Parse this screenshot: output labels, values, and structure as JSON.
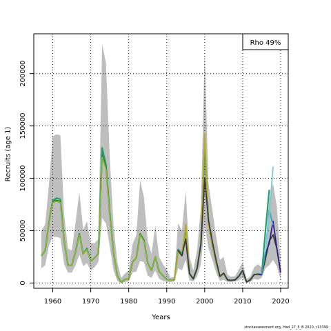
{
  "chart_data": {
    "type": "line",
    "title": "",
    "xlabel": "Years",
    "ylabel": "Recruits (age 1)",
    "xlim": [
      1955,
      2022
    ],
    "ylim": [
      -5000,
      238000
    ],
    "xticks": [
      1960,
      1970,
      1980,
      1990,
      2000,
      2010,
      2020
    ],
    "yticks": [
      0,
      50000,
      100000,
      150000,
      200000
    ],
    "grid": true,
    "legend_position": "top-right",
    "legend_text": "Rho 49%",
    "band": {
      "color": "#bebebe",
      "x": [
        1957,
        1958,
        1959,
        1960,
        1961,
        1962,
        1963,
        1964,
        1965,
        1966,
        1967,
        1968,
        1969,
        1970,
        1971,
        1972,
        1973,
        1974,
        1975,
        1976,
        1977,
        1978,
        1979,
        1980,
        1981,
        1982,
        1983,
        1984,
        1985,
        1986,
        1987,
        1988,
        1989,
        1990,
        1991,
        1992,
        1993,
        1994,
        1995,
        1996,
        1997,
        1998,
        1999,
        2000,
        2001,
        2002,
        2003,
        2004,
        2005,
        2006,
        2007,
        2008,
        2009,
        2010,
        2011,
        2012,
        2013,
        2014,
        2015,
        2016,
        2017,
        2018,
        2019,
        2020
      ],
      "lower": [
        14000,
        17000,
        36000,
        44000,
        44000,
        43000,
        18000,
        10000,
        10000,
        17000,
        27000,
        16000,
        19000,
        12000,
        15000,
        20000,
        62000,
        57000,
        35000,
        12000,
        2000,
        100,
        1000,
        1500,
        10000,
        11000,
        21000,
        20000,
        7000,
        5000,
        12000,
        4000,
        2000,
        1000,
        1000,
        1500,
        14000,
        12000,
        22000,
        2500,
        1500,
        6000,
        18000,
        55000,
        33000,
        22000,
        10000,
        2000,
        3000,
        1000,
        1000,
        1500,
        2500,
        5000,
        300,
        1000,
        4000,
        3000,
        5000,
        14000,
        17000,
        22000,
        16000,
        3000
      ],
      "upper": [
        50000,
        56000,
        95000,
        140000,
        142000,
        141000,
        65000,
        33000,
        31000,
        58000,
        87000,
        51000,
        59000,
        38000,
        38000,
        42000,
        228000,
        210000,
        120000,
        55000,
        20000,
        5000,
        9000,
        12000,
        37000,
        46000,
        98000,
        82000,
        40000,
        28000,
        55000,
        25000,
        18000,
        13000,
        5000,
        6000,
        57000,
        50000,
        88000,
        25000,
        12000,
        32000,
        72000,
        221000,
        95000,
        70000,
        45000,
        22000,
        25000,
        8000,
        6000,
        6500,
        13000,
        20000,
        4000,
        6000,
        15000,
        18000,
        15000,
        32000,
        80000,
        95000,
        73000,
        22000
      ]
    },
    "series": [
      {
        "color": "#1f9e6a",
        "x": [
          1957,
          1958,
          1959,
          1960,
          1961,
          1962,
          1963,
          1964,
          1965,
          1966,
          1967,
          1968,
          1969,
          1970,
          1971,
          1972,
          1973,
          1974,
          1975,
          1976,
          1977,
          1978,
          1979,
          1980,
          1981,
          1982,
          1983,
          1984,
          1985,
          1986,
          1987,
          1988,
          1989,
          1990,
          1991,
          1992,
          1993,
          1994,
          1995,
          1996,
          1997,
          1998,
          1999,
          2000,
          2001,
          2002,
          2003,
          2004,
          2005,
          2006,
          2007,
          2008,
          2009,
          2010,
          2011,
          2012,
          2013,
          2014,
          2015,
          2016,
          2017
        ],
        "y": [
          26000,
          31000,
          58000,
          79000,
          81000,
          80000,
          40000,
          17000,
          17000,
          30000,
          47000,
          28000,
          33000,
          21000,
          24000,
          28000,
          129000,
          113000,
          67000,
          29000,
          7000,
          500,
          3500,
          4000,
          20000,
          24000,
          47000,
          41000,
          19000,
          12000,
          25000,
          11000,
          7000,
          3500,
          2500,
          3000,
          32000,
          28000,
          48000,
          9000,
          4000,
          14000,
          37000,
          133000,
          58000,
          37000,
          20000,
          6000,
          9000,
          3000,
          2500,
          3000,
          6500,
          12000,
          1000,
          3000,
          8000,
          8500,
          8000,
          50000,
          89000
        ]
      },
      {
        "color": "#2e7d32",
        "x": [
          1957,
          1958,
          1959,
          1960,
          1961,
          1962,
          1963,
          1964,
          1965,
          1966,
          1967,
          1968,
          1969,
          1970,
          1971,
          1972,
          1973,
          1974,
          1975,
          1976,
          1977,
          1978,
          1979,
          1980,
          1981,
          1982,
          1983,
          1984,
          1985,
          1986,
          1987,
          1988,
          1989,
          1990,
          1991,
          1992,
          1993,
          1994,
          1995,
          1996,
          1997,
          1998,
          1999,
          2000,
          2001,
          2002,
          2003,
          2004,
          2005,
          2006,
          2007,
          2008,
          2009,
          2010,
          2011,
          2012,
          2013,
          2014,
          2015
        ],
        "y": [
          26000,
          31000,
          58000,
          78000,
          79000,
          78000,
          40000,
          17000,
          17000,
          30000,
          47000,
          28000,
          32000,
          21000,
          24000,
          28000,
          122000,
          111000,
          66000,
          29000,
          7000,
          500,
          3500,
          4000,
          20000,
          24000,
          47000,
          41000,
          19000,
          12000,
          25000,
          11000,
          7000,
          3500,
          2500,
          3000,
          31000,
          27000,
          46000,
          9000,
          4000,
          14000,
          37000,
          137000,
          57000,
          36000,
          19000,
          6000,
          9000,
          3000,
          2500,
          3000,
          6500,
          12000,
          1000,
          3000,
          8000,
          8000,
          7500
        ]
      },
      {
        "color": "#8db33a",
        "x": [
          1957,
          1958,
          1959,
          1960,
          1961,
          1962,
          1963,
          1964,
          1965,
          1966,
          1967,
          1968,
          1969,
          1970,
          1971,
          1972,
          1973,
          1974,
          1975,
          1976,
          1977,
          1978,
          1979,
          1980,
          1981,
          1982,
          1983,
          1984,
          1985,
          1986,
          1987,
          1988,
          1989,
          1990,
          1991,
          1992,
          1993,
          1994,
          1995,
          1996,
          1997,
          1998,
          1999,
          2000,
          2001,
          2002,
          2003,
          2004,
          2005,
          2006,
          2007,
          2008,
          2009,
          2010,
          2011,
          2012,
          2013,
          2014,
          2015,
          2016
        ],
        "y": [
          26000,
          31000,
          58000,
          77000,
          78000,
          77000,
          40000,
          17000,
          17000,
          30000,
          46000,
          28000,
          32000,
          21000,
          24000,
          28000,
          120000,
          109000,
          65000,
          29000,
          7000,
          500,
          3500,
          4000,
          20000,
          24000,
          46000,
          40000,
          19000,
          12000,
          25000,
          11000,
          7000,
          3500,
          2500,
          3000,
          30000,
          27000,
          46000,
          9000,
          4000,
          14000,
          37000,
          141000,
          56000,
          36000,
          19000,
          6000,
          9000,
          3000,
          2500,
          3000,
          6500,
          12000,
          1000,
          3000,
          8000,
          8000,
          7500,
          22000
        ]
      },
      {
        "color": "#b5a72a",
        "x": [
          1992,
          1993,
          1994,
          1995,
          1996,
          1997,
          1998,
          1999,
          2000,
          2001,
          2002
        ],
        "y": [
          3000,
          30000,
          27000,
          56000,
          9000,
          4000,
          14000,
          37000,
          143000,
          56000,
          36000
        ]
      },
      {
        "color": "#3a3a3a",
        "x": [
          1993,
          1994,
          1995,
          1996,
          1997,
          1998,
          1999,
          2000,
          2001,
          2002,
          2003,
          2004,
          2005,
          2006,
          2007,
          2008,
          2009,
          2010,
          2011,
          2012,
          2013,
          2014,
          2015,
          2016,
          2017,
          2018,
          2019,
          2020
        ],
        "y": [
          31000,
          26000,
          42000,
          9000,
          4000,
          14000,
          37000,
          100000,
          60000,
          40000,
          22000,
          6500,
          9500,
          3000,
          2500,
          3000,
          6500,
          12000,
          1000,
          3000,
          8000,
          8500,
          8000,
          23000,
          40000,
          46000,
          33000,
          10000
        ]
      },
      {
        "color": "#2c1f8c",
        "x": [
          2014,
          2015,
          2016,
          2017,
          2018,
          2019,
          2020
        ],
        "y": [
          8500,
          8000,
          28000,
          38000,
          59000,
          33000,
          10000
        ]
      },
      {
        "color": "#4a9fb5",
        "x": [
          2015,
          2016,
          2017,
          2018
        ],
        "y": [
          8000,
          30000,
          70000,
          55000
        ]
      },
      {
        "color": "#7ac8de",
        "x": [
          2016,
          2017,
          2018
        ],
        "y": [
          30000,
          65000,
          111000
        ]
      }
    ]
  },
  "footer_text": "stockassessment.org, Had_27_5_B 2020, r13399"
}
